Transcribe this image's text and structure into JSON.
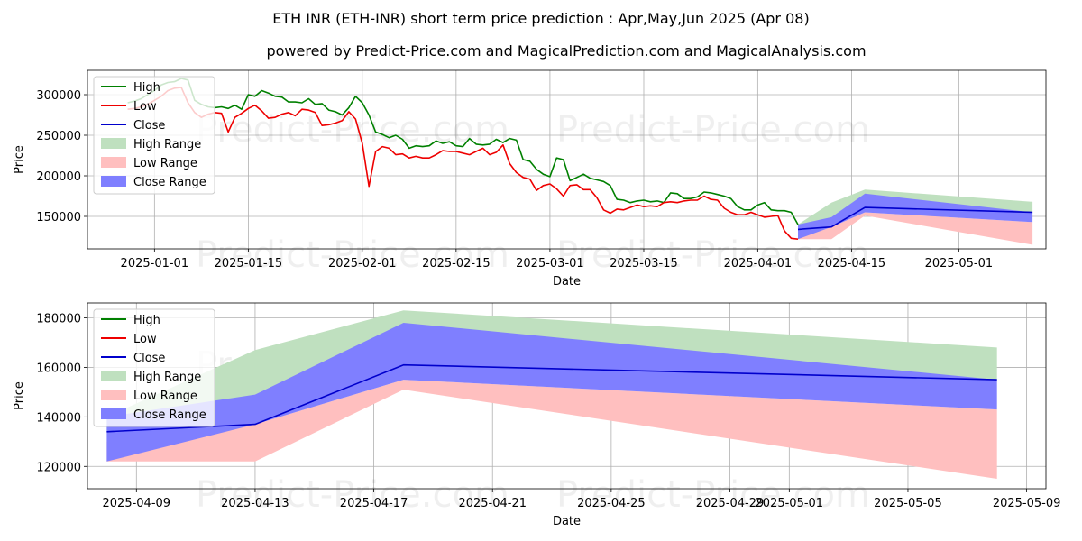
{
  "title_line1": "ETH INR (ETH-INR) short term price prediction : Apr,May,Jun 2025 (Apr 08)",
  "title_line2": "powered by Predict-Price.com and MagicalPrediction.com and MagicalAnalysis.com",
  "watermark": "Predict-Price.com",
  "colors": {
    "high": "#008000",
    "low": "#ee0000",
    "close": "#0000cc",
    "high_range": "#bfe0bf",
    "low_range": "#ffbfbf",
    "close_range": "#7f7fff"
  },
  "chart_data": [
    {
      "type": "line",
      "xlabel": "Date",
      "ylabel": "Price",
      "xlim": [
        -10,
        133
      ],
      "ylim": [
        110000,
        330000
      ],
      "x_unit": "days since 2025-01-01",
      "xticks": [
        {
          "v": 0,
          "label": "2025-01-01"
        },
        {
          "v": 14,
          "label": "2025-01-15"
        },
        {
          "v": 31,
          "label": "2025-02-01"
        },
        {
          "v": 45,
          "label": "2025-02-15"
        },
        {
          "v": 59,
          "label": "2025-03-01"
        },
        {
          "v": 73,
          "label": "2025-03-15"
        },
        {
          "v": 90,
          "label": "2025-04-01"
        },
        {
          "v": 104,
          "label": "2025-04-15"
        },
        {
          "v": 120,
          "label": "2025-05-01"
        }
      ],
      "yticks": [
        150000,
        200000,
        250000,
        300000
      ],
      "grid": true,
      "legend": [
        "High",
        "Low",
        "Close",
        "High Range",
        "Low Range",
        "Close Range"
      ],
      "series": {
        "high": {
          "name": "High",
          "x": [
            -4,
            -3,
            -2,
            -1,
            0,
            1,
            2,
            3,
            4,
            5,
            6,
            7,
            8,
            9,
            10,
            11,
            12,
            13,
            14,
            15,
            16,
            17,
            18,
            19,
            20,
            21,
            22,
            23,
            24,
            25,
            26,
            27,
            28,
            29,
            30,
            31,
            32,
            33,
            34,
            35,
            36,
            37,
            38,
            39,
            40,
            41,
            42,
            43,
            44,
            45,
            46,
            47,
            48,
            49,
            50,
            51,
            52,
            53,
            54,
            55,
            56,
            57,
            58,
            59,
            60,
            61,
            62,
            63,
            64,
            65,
            66,
            67,
            68,
            69,
            70,
            71,
            72,
            73,
            74,
            75,
            76,
            77,
            78,
            79,
            80,
            81,
            82,
            83,
            84,
            85,
            86,
            87,
            88,
            89,
            90,
            91,
            92,
            93,
            94,
            95,
            96
          ],
          "y": [
            290000,
            292000,
            295000,
            300000,
            305000,
            312000,
            315000,
            316000,
            320000,
            318000,
            293000,
            288000,
            285000,
            284000,
            285000,
            283000,
            287000,
            282000,
            300000,
            298000,
            305000,
            302000,
            298000,
            297000,
            291000,
            291000,
            290000,
            295000,
            288000,
            289000,
            281000,
            279000,
            275000,
            284000,
            298000,
            290000,
            275000,
            254000,
            251000,
            247000,
            250000,
            245000,
            234000,
            237000,
            236000,
            237000,
            243000,
            240000,
            242000,
            237000,
            236000,
            246000,
            239000,
            238000,
            239000,
            245000,
            241000,
            246000,
            244000,
            220000,
            218000,
            208000,
            202000,
            199000,
            222000,
            220000,
            194000,
            198000,
            202000,
            197000,
            195000,
            193000,
            188000,
            171000,
            170000,
            167000,
            169000,
            170000,
            168000,
            169000,
            167000,
            179000,
            178000,
            172000,
            172000,
            174000,
            180000,
            179000,
            177000,
            175000,
            172000,
            162000,
            158000,
            158000,
            164000,
            167000,
            158000,
            157000,
            157000,
            155000,
            140000
          ]
        },
        "low": {
          "name": "Low",
          "x": [
            -4,
            -3,
            -2,
            -1,
            0,
            1,
            2,
            3,
            4,
            5,
            6,
            7,
            8,
            9,
            10,
            11,
            12,
            13,
            14,
            15,
            16,
            17,
            18,
            19,
            20,
            21,
            22,
            23,
            24,
            25,
            26,
            27,
            28,
            29,
            30,
            31,
            32,
            33,
            34,
            35,
            36,
            37,
            38,
            39,
            40,
            41,
            42,
            43,
            44,
            45,
            46,
            47,
            48,
            49,
            50,
            51,
            52,
            53,
            54,
            55,
            56,
            57,
            58,
            59,
            60,
            61,
            62,
            63,
            64,
            65,
            66,
            67,
            68,
            69,
            70,
            71,
            72,
            73,
            74,
            75,
            76,
            77,
            78,
            79,
            80,
            81,
            82,
            83,
            84,
            85,
            86,
            87,
            88,
            89,
            90,
            91,
            92,
            93,
            94,
            95,
            96
          ],
          "y": [
            282000,
            283000,
            285000,
            288000,
            293000,
            298000,
            305000,
            308000,
            309000,
            290000,
            278000,
            272000,
            276000,
            278000,
            277000,
            254000,
            272000,
            277000,
            283000,
            287000,
            280000,
            271000,
            272000,
            276000,
            278000,
            274000,
            282000,
            281000,
            278000,
            262000,
            263000,
            265000,
            268000,
            279000,
            270000,
            240000,
            187000,
            230000,
            236000,
            234000,
            226000,
            227000,
            222000,
            224000,
            222000,
            222000,
            226000,
            231000,
            230000,
            230000,
            228000,
            226000,
            230000,
            234000,
            226000,
            229000,
            238000,
            215000,
            204000,
            198000,
            196000,
            182000,
            188000,
            190000,
            184000,
            175000,
            188000,
            189000,
            183000,
            183000,
            173000,
            158000,
            154000,
            159000,
            158000,
            161000,
            164000,
            162000,
            163000,
            162000,
            167000,
            168000,
            167000,
            169000,
            170000,
            170000,
            175000,
            171000,
            170000,
            160000,
            155000,
            152000,
            152000,
            155000,
            152000,
            149000,
            150000,
            151000,
            132000,
            123000,
            122000
          ]
        },
        "close": {
          "name": "Close",
          "x": [
            96,
            101,
            106,
            131
          ],
          "y": [
            134000,
            137000,
            161000,
            155000
          ]
        },
        "high_range": {
          "name": "High Range",
          "x": [
            96,
            101,
            106,
            131
          ],
          "upper": [
            140000,
            167000,
            183000,
            168000
          ],
          "lower": [
            134000,
            149000,
            161000,
            155000
          ]
        },
        "low_range": {
          "name": "Low Range",
          "x": [
            96,
            101,
            106,
            131
          ],
          "upper": [
            130000,
            137000,
            155000,
            143000
          ],
          "lower": [
            122000,
            122000,
            151000,
            115000
          ]
        },
        "close_range": {
          "name": "Close Range",
          "x": [
            96,
            101,
            106,
            131
          ],
          "upper": [
            140000,
            149000,
            178000,
            155000
          ],
          "lower": [
            122000,
            137000,
            155000,
            143000
          ]
        }
      }
    },
    {
      "type": "line",
      "xlabel": "Date",
      "ylabel": "Price",
      "xlim": [
        -0.65,
        31.65
      ],
      "ylim": [
        111000,
        186000
      ],
      "x_unit": "days since 2025-04-08",
      "xticks": [
        {
          "v": 1,
          "label": "2025-04-09"
        },
        {
          "v": 5,
          "label": "2025-04-13"
        },
        {
          "v": 9,
          "label": "2025-04-17"
        },
        {
          "v": 13,
          "label": "2025-04-21"
        },
        {
          "v": 17,
          "label": "2025-04-25"
        },
        {
          "v": 21,
          "label": "2025-04-29"
        },
        {
          "v": 23,
          "label": "2025-05-01"
        },
        {
          "v": 27,
          "label": "2025-05-05"
        },
        {
          "v": 31,
          "label": "2025-05-09"
        }
      ],
      "yticks": [
        120000,
        140000,
        160000,
        180000
      ],
      "grid": true,
      "legend": [
        "High",
        "Low",
        "Close",
        "High Range",
        "Low Range",
        "Close Range"
      ],
      "series": {
        "close": {
          "name": "Close",
          "x": [
            0,
            5,
            10,
            30
          ],
          "y": [
            134000,
            137000,
            161000,
            155000
          ]
        },
        "high_range": {
          "name": "High Range",
          "x": [
            0,
            5,
            10,
            30
          ],
          "upper": [
            140000,
            167000,
            183000,
            168000
          ],
          "lower": [
            134000,
            149000,
            161000,
            155000
          ]
        },
        "low_range": {
          "name": "Low Range",
          "x": [
            0,
            5,
            10,
            30
          ],
          "upper": [
            130000,
            137000,
            155000,
            143000
          ],
          "lower": [
            122000,
            122000,
            151000,
            115000
          ]
        },
        "close_range": {
          "name": "Close Range",
          "x": [
            0,
            5,
            10,
            30
          ],
          "upper": [
            140000,
            149000,
            178000,
            155000
          ],
          "lower": [
            122000,
            137000,
            155000,
            143000
          ]
        }
      }
    }
  ]
}
